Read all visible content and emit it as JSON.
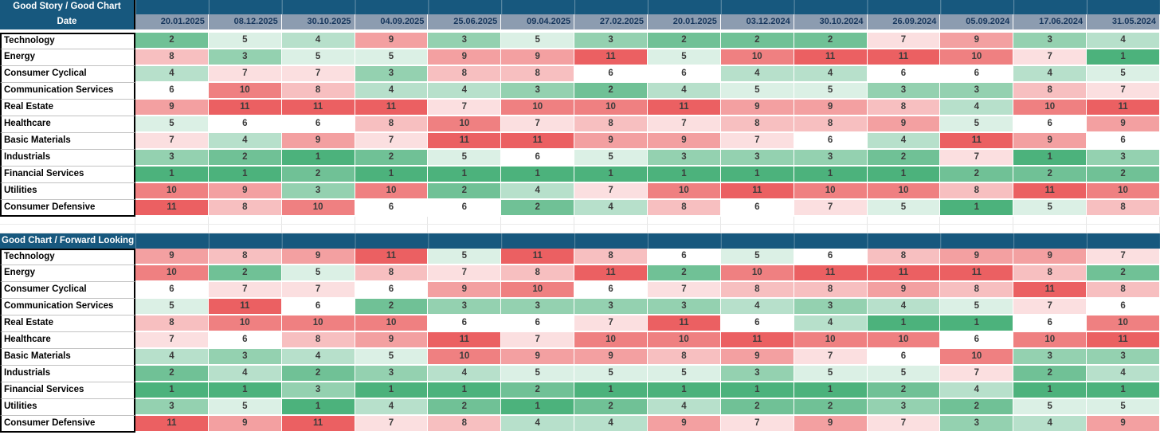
{
  "colors": {
    "header_blue": "#17587E",
    "date_header_bg": "#8C9CB0",
    "date_header_text": "#16365C",
    "value_text": "#3B3B3B",
    "scale_low_green": "#4CB27C",
    "scale_mid_white": "#FFFFFF",
    "scale_high_red": "#EB6062"
  },
  "date_row_label": "Date",
  "chart_data": [
    {
      "type": "heatmap",
      "title": "Good Story / Good Chart",
      "row_header": "Date",
      "columns": [
        "20.01.2025",
        "08.12.2025",
        "30.10.2025",
        "04.09.2025",
        "25.06.2025",
        "09.04.2025",
        "27.02.2025",
        "20.01.2025",
        "03.12.2024",
        "30.10.2024",
        "26.09.2024",
        "05.09.2024",
        "17.06.2024",
        "31.05.2024"
      ],
      "rows": [
        "Technology",
        "Energy",
        "Consumer Cyclical",
        "Communication Services",
        "Real Estate",
        "Healthcare",
        "Basic Materials",
        "Industrials",
        "Financial Services",
        "Utilities",
        "Consumer Defensive"
      ],
      "values": [
        [
          2,
          5,
          4,
          9,
          3,
          5,
          3,
          2,
          2,
          2,
          7,
          9,
          3,
          4
        ],
        [
          8,
          3,
          5,
          5,
          9,
          9,
          11,
          5,
          10,
          11,
          11,
          10,
          7,
          1
        ],
        [
          4,
          7,
          7,
          3,
          8,
          8,
          6,
          6,
          4,
          4,
          6,
          6,
          4,
          5
        ],
        [
          6,
          10,
          8,
          4,
          4,
          3,
          2,
          4,
          5,
          5,
          3,
          3,
          8,
          7
        ],
        [
          9,
          11,
          11,
          11,
          7,
          10,
          10,
          11,
          9,
          9,
          8,
          4,
          10,
          11
        ],
        [
          5,
          6,
          6,
          8,
          10,
          7,
          8,
          7,
          8,
          8,
          9,
          5,
          6,
          9
        ],
        [
          7,
          4,
          9,
          7,
          11,
          11,
          9,
          9,
          7,
          6,
          4,
          11,
          9,
          6
        ],
        [
          3,
          2,
          1,
          2,
          5,
          6,
          5,
          3,
          3,
          3,
          2,
          7,
          1,
          3
        ],
        [
          1,
          1,
          2,
          1,
          1,
          1,
          1,
          1,
          1,
          1,
          1,
          2,
          2,
          2
        ],
        [
          10,
          9,
          3,
          10,
          2,
          4,
          7,
          10,
          11,
          10,
          10,
          8,
          11,
          10
        ],
        [
          11,
          8,
          10,
          6,
          6,
          2,
          4,
          8,
          6,
          7,
          5,
          1,
          5,
          8
        ]
      ],
      "color_scale": {
        "min": 1,
        "mid": 6,
        "max": 11,
        "min_color": "#4CB27C",
        "mid_color": "#FFFFFF",
        "max_color": "#EB6062"
      }
    },
    {
      "type": "heatmap",
      "title": "Good Chart / Forward Looking",
      "row_header": "Date",
      "columns": [
        "20.01.2025",
        "08.12.2025",
        "30.10.2025",
        "04.09.2025",
        "25.06.2025",
        "09.04.2025",
        "27.02.2025",
        "20.01.2025",
        "03.12.2024",
        "30.10.2024",
        "26.09.2024",
        "05.09.2024",
        "17.06.2024",
        "31.05.2024"
      ],
      "rows": [
        "Technology",
        "Energy",
        "Consumer Cyclical",
        "Communication Services",
        "Real Estate",
        "Healthcare",
        "Basic Materials",
        "Industrials",
        "Financial Services",
        "Utilities",
        "Consumer Defensive"
      ],
      "values": [
        [
          9,
          8,
          9,
          11,
          5,
          11,
          8,
          6,
          5,
          6,
          8,
          9,
          9,
          7
        ],
        [
          10,
          2,
          5,
          8,
          7,
          8,
          11,
          2,
          10,
          11,
          11,
          11,
          8,
          2
        ],
        [
          6,
          7,
          7,
          6,
          9,
          10,
          6,
          7,
          8,
          8,
          9,
          8,
          11,
          8
        ],
        [
          5,
          11,
          6,
          2,
          3,
          3,
          3,
          3,
          4,
          3,
          4,
          5,
          7,
          6
        ],
        [
          8,
          10,
          10,
          10,
          6,
          6,
          7,
          11,
          6,
          4,
          1,
          1,
          6,
          10
        ],
        [
          7,
          6,
          8,
          9,
          11,
          7,
          10,
          10,
          11,
          10,
          10,
          6,
          10,
          11
        ],
        [
          4,
          3,
          4,
          5,
          10,
          9,
          9,
          8,
          9,
          7,
          6,
          10,
          3,
          3
        ],
        [
          2,
          4,
          2,
          3,
          4,
          5,
          5,
          5,
          3,
          5,
          5,
          7,
          2,
          4
        ],
        [
          1,
          1,
          3,
          1,
          1,
          2,
          1,
          1,
          1,
          1,
          2,
          4,
          1,
          1
        ],
        [
          3,
          5,
          1,
          4,
          2,
          1,
          2,
          4,
          2,
          2,
          3,
          2,
          5,
          5
        ],
        [
          11,
          9,
          11,
          7,
          8,
          4,
          4,
          9,
          7,
          9,
          7,
          3,
          4,
          9
        ]
      ],
      "color_scale": {
        "min": 1,
        "mid": 6,
        "max": 11,
        "min_color": "#4CB27C",
        "mid_color": "#FFFFFF",
        "max_color": "#EB6062"
      }
    }
  ]
}
